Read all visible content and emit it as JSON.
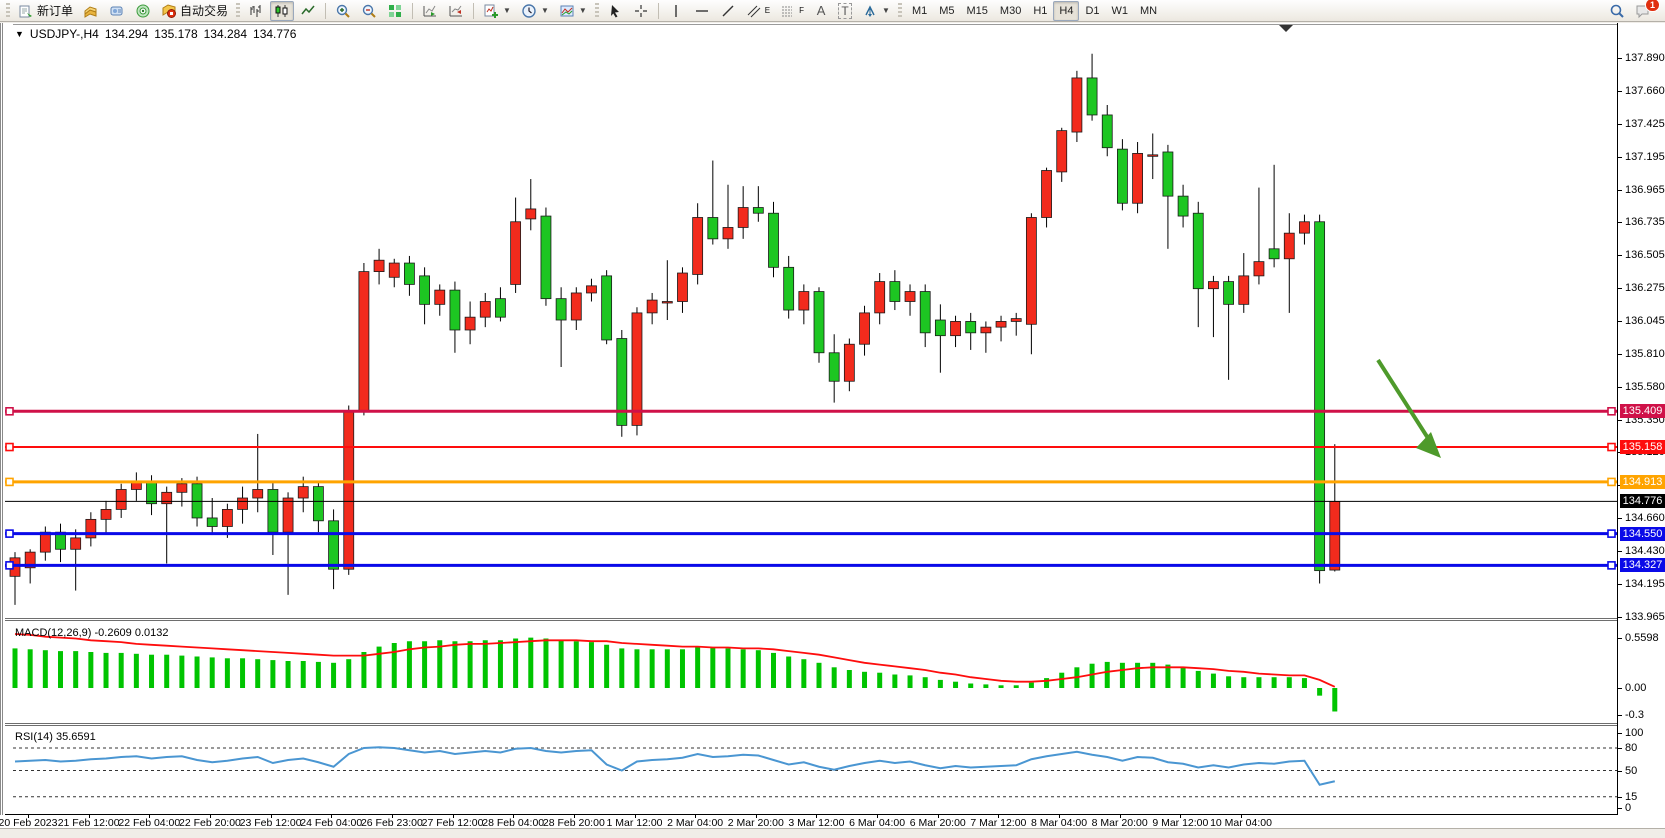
{
  "toolbar": {
    "new_order_label": "新订单",
    "auto_trading_label": "自动交易",
    "timeframes": [
      "M1",
      "M5",
      "M15",
      "M30",
      "H1",
      "H4",
      "D1",
      "W1",
      "MN"
    ],
    "active_timeframe": "H4",
    "notification_count": "1",
    "text_tool_label": "A",
    "label_tool_label": "T",
    "channel_tool_sub": "E",
    "fibo_tool_sub": "F"
  },
  "chart_header": {
    "symbol": "USDJPY-,H4",
    "open": "134.294",
    "high": "135.178",
    "low": "134.284",
    "close": "134.776"
  },
  "chart_data": {
    "type": "candlestick",
    "symbol": "USDJPY-",
    "timeframe": "H4",
    "bull_color": "#f22b1d",
    "bear_color": "#1dc622",
    "wick_color": "#000000",
    "price_axis_ticks": [
      137.89,
      137.66,
      137.425,
      137.195,
      136.965,
      136.735,
      136.505,
      136.275,
      136.045,
      135.81,
      135.58,
      135.35,
      135.12,
      134.89,
      134.66,
      134.43,
      134.195,
      133.965
    ],
    "time_axis_labels": [
      "20 Feb 2023",
      "21 Feb 12:00",
      "22 Feb 04:00",
      "22 Feb 20:00",
      "23 Feb 12:00",
      "24 Feb 04:00",
      "26 Feb 23:00",
      "27 Feb 12:00",
      "28 Feb 04:00",
      "28 Feb 20:00",
      "1 Mar 12:00",
      "2 Mar 04:00",
      "2 Mar 20:00",
      "3 Mar 12:00",
      "6 Mar 04:00",
      "6 Mar 20:00",
      "7 Mar 12:00",
      "8 Mar 04:00",
      "8 Mar 20:00",
      "9 Mar 12:00",
      "10 Mar 04:00"
    ],
    "candles": [
      [
        134.25,
        134.42,
        134.05,
        134.38
      ],
      [
        134.31,
        134.44,
        134.2,
        134.42
      ],
      [
        134.42,
        134.6,
        134.36,
        134.56
      ],
      [
        134.56,
        134.62,
        134.35,
        134.44
      ],
      [
        134.44,
        134.58,
        134.15,
        134.52
      ],
      [
        134.52,
        134.7,
        134.46,
        134.65
      ],
      [
        134.65,
        134.78,
        134.55,
        134.72
      ],
      [
        134.72,
        134.9,
        134.66,
        134.86
      ],
      [
        134.86,
        134.98,
        134.78,
        134.92
      ],
      [
        134.92,
        134.96,
        134.68,
        134.76
      ],
      [
        134.76,
        134.88,
        134.34,
        134.84
      ],
      [
        134.84,
        134.94,
        134.74,
        134.9
      ],
      [
        134.9,
        134.95,
        134.6,
        134.66
      ],
      [
        134.66,
        134.8,
        134.54,
        134.6
      ],
      [
        134.6,
        134.76,
        134.52,
        134.72
      ],
      [
        134.72,
        134.88,
        134.62,
        134.8
      ],
      [
        134.8,
        135.25,
        134.7,
        134.86
      ],
      [
        134.86,
        134.92,
        134.4,
        134.56
      ],
      [
        134.56,
        134.84,
        134.12,
        134.8
      ],
      [
        134.8,
        134.95,
        134.7,
        134.88
      ],
      [
        134.88,
        134.92,
        134.56,
        134.64
      ],
      [
        134.64,
        134.72,
        134.16,
        134.3
      ],
      [
        134.3,
        135.45,
        134.26,
        135.41
      ],
      [
        135.41,
        136.45,
        135.38,
        136.39
      ],
      [
        136.39,
        136.55,
        136.3,
        136.47
      ],
      [
        136.35,
        136.48,
        136.28,
        136.45
      ],
      [
        136.45,
        136.5,
        136.22,
        136.3
      ],
      [
        136.36,
        136.42,
        136.02,
        136.16
      ],
      [
        136.16,
        136.3,
        136.08,
        136.26
      ],
      [
        136.26,
        136.32,
        135.82,
        135.98
      ],
      [
        135.98,
        136.18,
        135.88,
        136.07
      ],
      [
        136.07,
        136.24,
        136.0,
        136.18
      ],
      [
        136.2,
        136.28,
        136.04,
        136.07
      ],
      [
        136.3,
        136.91,
        136.24,
        136.74
      ],
      [
        136.76,
        137.04,
        136.68,
        136.83
      ],
      [
        136.78,
        136.84,
        136.15,
        136.2
      ],
      [
        136.2,
        136.28,
        135.72,
        136.05
      ],
      [
        136.05,
        136.28,
        135.98,
        136.24
      ],
      [
        136.24,
        136.34,
        136.18,
        136.29
      ],
      [
        136.36,
        136.4,
        135.88,
        135.91
      ],
      [
        135.92,
        135.98,
        135.23,
        135.31
      ],
      [
        135.31,
        136.14,
        135.24,
        136.1
      ],
      [
        136.1,
        136.24,
        136.02,
        136.19
      ],
      [
        136.17,
        136.47,
        136.05,
        136.18
      ],
      [
        136.18,
        136.42,
        136.1,
        136.38
      ],
      [
        136.37,
        136.87,
        136.3,
        136.77
      ],
      [
        136.77,
        137.17,
        136.58,
        136.62
      ],
      [
        136.62,
        137.0,
        136.55,
        136.7
      ],
      [
        136.7,
        136.99,
        136.62,
        136.84
      ],
      [
        136.84,
        136.99,
        136.74,
        136.8
      ],
      [
        136.8,
        136.88,
        136.35,
        136.42
      ],
      [
        136.42,
        136.5,
        136.06,
        136.12
      ],
      [
        136.12,
        136.3,
        136.02,
        136.25
      ],
      [
        136.25,
        136.28,
        135.75,
        135.82
      ],
      [
        135.82,
        135.95,
        135.47,
        135.62
      ],
      [
        135.62,
        135.92,
        135.55,
        135.88
      ],
      [
        135.88,
        136.15,
        135.8,
        136.1
      ],
      [
        136.1,
        136.38,
        136.02,
        136.32
      ],
      [
        136.32,
        136.4,
        136.12,
        136.18
      ],
      [
        136.18,
        136.3,
        136.08,
        136.25
      ],
      [
        136.25,
        136.3,
        135.86,
        135.96
      ],
      [
        136.05,
        136.16,
        135.68,
        135.94
      ],
      [
        135.94,
        136.08,
        135.86,
        136.04
      ],
      [
        136.04,
        136.1,
        135.84,
        135.96
      ],
      [
        135.96,
        136.04,
        135.82,
        136.0
      ],
      [
        136.0,
        136.08,
        135.9,
        136.04
      ],
      [
        136.04,
        136.1,
        135.94,
        136.06
      ],
      [
        136.02,
        136.8,
        135.81,
        136.77
      ],
      [
        136.77,
        137.12,
        136.7,
        137.1
      ],
      [
        137.09,
        137.4,
        137.02,
        137.38
      ],
      [
        137.37,
        137.8,
        137.3,
        137.75
      ],
      [
        137.75,
        137.92,
        137.45,
        137.49
      ],
      [
        137.49,
        137.56,
        137.2,
        137.26
      ],
      [
        137.25,
        137.32,
        136.82,
        136.87
      ],
      [
        136.87,
        137.3,
        136.8,
        137.22
      ],
      [
        137.2,
        137.36,
        137.04,
        137.21
      ],
      [
        137.23,
        137.28,
        136.55,
        136.92
      ],
      [
        136.92,
        137.0,
        136.7,
        136.78
      ],
      [
        136.8,
        136.88,
        136.0,
        136.27
      ],
      [
        136.27,
        136.36,
        135.93,
        136.32
      ],
      [
        136.32,
        136.36,
        135.63,
        136.16
      ],
      [
        136.16,
        136.52,
        136.1,
        136.36
      ],
      [
        136.36,
        136.98,
        136.3,
        136.46
      ],
      [
        136.55,
        137.14,
        136.42,
        136.48
      ],
      [
        136.48,
        136.8,
        136.1,
        136.66
      ],
      [
        136.66,
        136.79,
        136.58,
        136.74
      ],
      [
        136.74,
        136.79,
        134.2,
        134.29
      ],
      [
        134.294,
        135.178,
        134.284,
        134.776
      ]
    ],
    "horizontal_lines": [
      {
        "price": 135.409,
        "label": "135.409",
        "color": "#cf1148",
        "width": 3
      },
      {
        "price": 135.158,
        "label": "135.158",
        "color": "#fe0d0d",
        "width": 2
      },
      {
        "price": 134.913,
        "label": "134.913",
        "color": "#ffa400",
        "width": 3
      },
      {
        "price": 134.55,
        "label": "134.550",
        "color": "#0a0ae8",
        "width": 3
      },
      {
        "price": 134.327,
        "label": "134.327",
        "color": "#0a0ae8",
        "width": 3
      }
    ],
    "current_price_line": {
      "price": 134.776,
      "label": "134.776",
      "color": "#000000"
    },
    "macd": {
      "label": "MACD(12,26,9)",
      "value_label": "-0.2609",
      "signal_label": "0.0132",
      "axis_labels": [
        "0.5598",
        "0.00",
        "-0.3"
      ],
      "axis_values": [
        0.5598,
        0,
        -0.3
      ],
      "hist_color": "#00c400",
      "signal_color": "#fe0d0d",
      "histogram": [
        0.44,
        0.43,
        0.42,
        0.41,
        0.41,
        0.4,
        0.39,
        0.39,
        0.38,
        0.37,
        0.37,
        0.36,
        0.35,
        0.34,
        0.33,
        0.33,
        0.32,
        0.31,
        0.3,
        0.3,
        0.29,
        0.28,
        0.32,
        0.4,
        0.46,
        0.5,
        0.52,
        0.52,
        0.53,
        0.52,
        0.52,
        0.53,
        0.53,
        0.55,
        0.56,
        0.55,
        0.53,
        0.52,
        0.51,
        0.48,
        0.44,
        0.43,
        0.43,
        0.43,
        0.43,
        0.45,
        0.45,
        0.44,
        0.43,
        0.42,
        0.39,
        0.35,
        0.32,
        0.28,
        0.23,
        0.2,
        0.18,
        0.17,
        0.15,
        0.14,
        0.12,
        0.09,
        0.07,
        0.05,
        0.04,
        0.03,
        0.03,
        0.06,
        0.11,
        0.17,
        0.23,
        0.27,
        0.29,
        0.28,
        0.28,
        0.28,
        0.26,
        0.23,
        0.19,
        0.16,
        0.13,
        0.12,
        0.12,
        0.12,
        0.12,
        0.11,
        -0.085,
        -0.2609
      ],
      "signal": [
        0.6,
        0.59,
        0.57,
        0.56,
        0.55,
        0.53,
        0.52,
        0.51,
        0.49,
        0.48,
        0.47,
        0.46,
        0.45,
        0.44,
        0.43,
        0.42,
        0.41,
        0.4,
        0.39,
        0.38,
        0.37,
        0.36,
        0.36,
        0.36,
        0.38,
        0.4,
        0.43,
        0.45,
        0.46,
        0.48,
        0.49,
        0.49,
        0.5,
        0.51,
        0.52,
        0.53,
        0.53,
        0.53,
        0.52,
        0.52,
        0.5,
        0.49,
        0.48,
        0.47,
        0.46,
        0.46,
        0.45,
        0.45,
        0.44,
        0.44,
        0.43,
        0.41,
        0.39,
        0.37,
        0.34,
        0.31,
        0.28,
        0.26,
        0.24,
        0.22,
        0.2,
        0.17,
        0.15,
        0.12,
        0.1,
        0.08,
        0.07,
        0.07,
        0.08,
        0.1,
        0.12,
        0.15,
        0.18,
        0.2,
        0.22,
        0.23,
        0.23,
        0.23,
        0.22,
        0.21,
        0.19,
        0.18,
        0.16,
        0.15,
        0.14,
        0.14,
        0.09,
        0.0132
      ]
    },
    "rsi": {
      "label": "RSI(14)",
      "value_label": "35.6591",
      "axis_labels": [
        "100",
        "80",
        "50",
        "15",
        "0"
      ],
      "axis_values": [
        100,
        80,
        50,
        15,
        0
      ],
      "levels": [
        80,
        50,
        15
      ],
      "color": "#4a96d2",
      "values": [
        62,
        63,
        64,
        62,
        63,
        65,
        66,
        68,
        69,
        66,
        68,
        69,
        64,
        61,
        63,
        66,
        68,
        60,
        64,
        66,
        61,
        55,
        72,
        80,
        81,
        80,
        77,
        74,
        76,
        72,
        74,
        76,
        74,
        79,
        80,
        76,
        74,
        76,
        77,
        58,
        50,
        62,
        64,
        65,
        67,
        72,
        68,
        69,
        71,
        70,
        64,
        58,
        61,
        55,
        51,
        56,
        60,
        63,
        60,
        62,
        57,
        53,
        56,
        54,
        55,
        56,
        57,
        65,
        69,
        72,
        75,
        71,
        68,
        63,
        68,
        67,
        61,
        59,
        54,
        57,
        54,
        58,
        60,
        59,
        62,
        63,
        31,
        35.66
      ]
    },
    "annotation_arrow": {
      "color": "#4e9a2b"
    }
  }
}
